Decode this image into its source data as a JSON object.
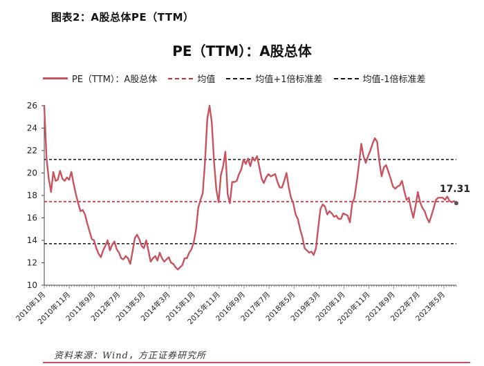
{
  "figure_title": "图表2：A股总体PE（TTM）",
  "source": "资料来源：Wind，方正证券研究所",
  "colors": {
    "pe_line": "#c8525e",
    "mean_line": "#d9262e",
    "band_lines": "#111111",
    "footer_rule": "#c8525e"
  },
  "chart_data": {
    "type": "line",
    "title": "PE（TTM）：A股总体",
    "xlabel": "",
    "ylabel": "",
    "ylim": [
      10,
      26
    ],
    "yticks": [
      10,
      12,
      14,
      16,
      18,
      20,
      22,
      24,
      26
    ],
    "grid": false,
    "legend_position": "top",
    "x_tick_labels": [
      "2010年1月",
      "2010年11月",
      "2011年9月",
      "2012年7月",
      "2013年5月",
      "2014年3月",
      "2015年1月",
      "2015年11月",
      "2016年9月",
      "2017年7月",
      "2018年5月",
      "2019年3月",
      "2020年1月",
      "2020年11月",
      "2021年9月",
      "2022年7月",
      "2023年5月"
    ],
    "series": [
      {
        "name": "PE（TTM）：A股总体",
        "color": "#c8525e",
        "x_start": "2010-01",
        "x_end": "2023-10",
        "values": [
          26,
          21.3,
          19.5,
          18.3,
          20.1,
          19.3,
          19.4,
          20.2,
          19.5,
          19.3,
          19.6,
          19.4,
          20.1,
          19.0,
          18.1,
          17.3,
          16.6,
          16.7,
          16.3,
          15.5,
          14.8,
          14.1,
          14.0,
          13.3,
          12.8,
          12.5,
          13.1,
          13.5,
          14.0,
          13.1,
          13.6,
          13.9,
          13.2,
          12.9,
          12.4,
          12.3,
          12.6,
          12.4,
          11.9,
          13.0,
          14.2,
          14.5,
          14.1,
          13.5,
          13.3,
          14.0,
          13.1,
          12.1,
          12.4,
          12.6,
          12.2,
          12.9,
          12.4,
          12.1,
          12.3,
          12.5,
          12.0,
          11.9,
          11.6,
          11.4,
          11.6,
          11.8,
          12.4,
          12.4,
          12.9,
          13.2,
          13.8,
          14.9,
          16.9,
          17.6,
          18.2,
          21.0,
          24.8,
          26.0,
          24.5,
          21.0,
          18.5,
          17.4,
          19.8,
          20.6,
          21.9,
          18.1,
          17.3,
          19.2,
          19.2,
          19.3,
          19.9,
          20.3,
          21.2,
          20.8,
          21.3,
          20.6,
          21.4,
          21.1,
          21.5,
          20.5,
          19.5,
          19.1,
          19.6,
          19.9,
          19.7,
          19.8,
          19.9,
          19.2,
          18.7,
          18.7,
          19.3,
          20.0,
          18.7,
          17.8,
          17.3,
          16.3,
          15.9,
          15.0,
          14.3,
          13.3,
          13.1,
          12.9,
          13.0,
          12.7,
          13.3,
          15.1,
          16.8,
          17.2,
          17.0,
          16.3,
          16.6,
          16.4,
          16.1,
          16.2,
          15.9,
          15.9,
          16.4,
          16.3,
          16.2,
          15.6,
          17.3,
          17.8,
          19.2,
          20.8,
          22.6,
          21.5,
          20.9,
          21.5,
          22.0,
          22.6,
          23.1,
          22.8,
          21.0,
          19.7,
          20.5,
          20.7,
          20.1,
          19.5,
          18.8,
          18.6,
          18.8,
          18.9,
          19.3,
          18.4,
          17.6,
          17.8,
          16.8,
          16.0,
          17.1,
          18.3,
          17.4,
          16.9,
          16.6,
          16.0,
          15.6,
          16.2,
          16.9,
          17.6,
          17.8,
          17.8,
          17.8,
          17.6,
          17.9,
          17.5,
          17.4,
          17.5,
          17.31
        ]
      }
    ],
    "reference_lines": [
      {
        "name": "均值",
        "value": 17.45,
        "style": "dashed",
        "color": "#d9262e"
      },
      {
        "name": "均值+1倍标准差",
        "value": 21.2,
        "style": "dashed",
        "color": "#111111"
      },
      {
        "name": "均值-1倍标准差",
        "value": 13.7,
        "style": "dashed",
        "color": "#111111"
      }
    ],
    "annotations": [
      {
        "text": "17.31",
        "x": "2023-10",
        "y": 17.31
      }
    ]
  }
}
